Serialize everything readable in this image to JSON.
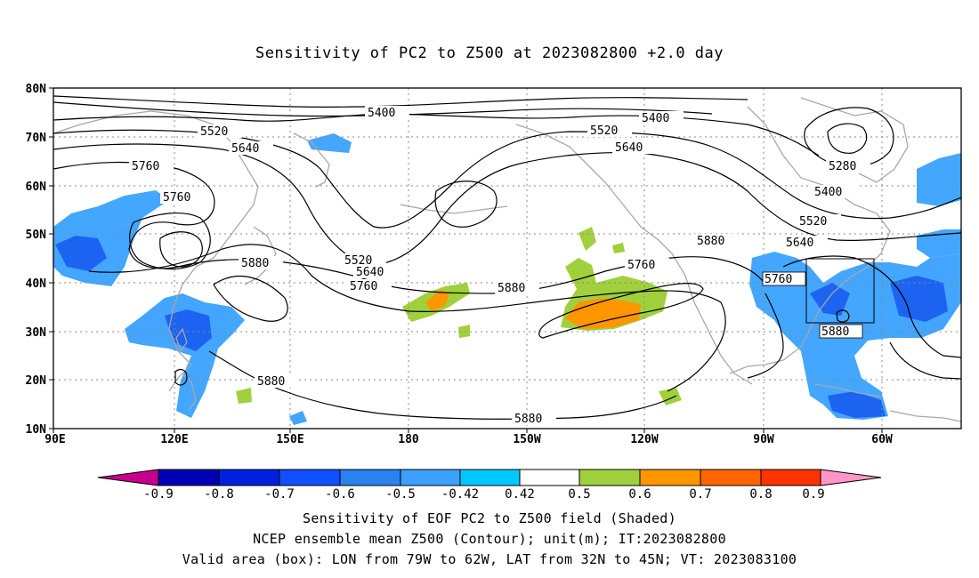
{
  "title": "Sensitivity of PC2 to Z500 at 2023082800 +2.0 day",
  "lat_labels": [
    "80N",
    "70N",
    "60N",
    "50N",
    "40N",
    "30N",
    "20N",
    "10N"
  ],
  "lon_labels": [
    "90E",
    "120E",
    "150E",
    "180",
    "150W",
    "120W",
    "90W",
    "60W"
  ],
  "contour_labels": [
    "5400",
    "5520",
    "5640",
    "5760",
    "5880",
    "5280"
  ],
  "colorbar": {
    "labels": [
      "-0.9",
      "-0.8",
      "-0.7",
      "-0.6",
      "-0.5",
      "-0.42",
      "0.42",
      "0.5",
      "0.6",
      "0.7",
      "0.8",
      "0.9"
    ],
    "colors": [
      "#c8008c",
      "#0000b4",
      "#0020e0",
      "#1050ff",
      "#2882f0",
      "#3ca0ff",
      "#00c8ff",
      "#ffffff",
      "#a0d03c",
      "#ff9600",
      "#ff6400",
      "#ff3200",
      "#ff0000",
      "#ff96c8"
    ]
  },
  "footer": {
    "line1": "Sensitivity of EOF PC2 to Z500 field (Shaded)",
    "line2": "NCEP ensemble mean Z500 (Contour); unit(m); IT:2023082800",
    "line3": "Valid area (box): LON from 79W to 62W, LAT from 32N to 45N; VT: 2023083100"
  }
}
